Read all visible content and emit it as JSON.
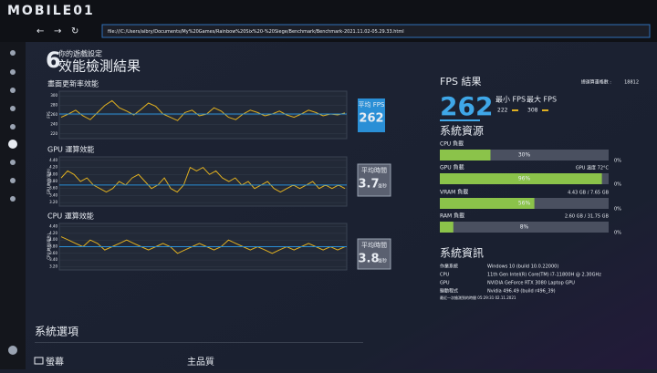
{
  "browser": {
    "logo": "MOBILE01",
    "url": "file:///C:/Users/aibry/Documents/My%20Games/Rainbow%20Six%20-%20Siege/Benchmark/Benchmark-2021.11.02-05.29.33.html"
  },
  "header": {
    "subtitle": "你的遊戲設定",
    "title": "效能檢測結果"
  },
  "charts": [
    {
      "title": "畫面更新率效能",
      "y_label": "FPS",
      "avg_label": "平均 FPS",
      "avg_value": 262,
      "ylim": [
        210,
        310
      ],
      "yticks": [
        220,
        240,
        260,
        280,
        300
      ],
      "values": [
        255,
        262,
        270,
        258,
        250,
        265,
        280,
        290,
        275,
        268,
        260,
        272,
        285,
        278,
        262,
        255,
        248,
        265,
        270,
        258,
        262,
        275,
        268,
        255,
        250,
        262,
        270,
        265,
        258,
        262,
        268,
        260,
        255,
        262,
        270,
        265,
        258,
        262,
        260,
        264
      ]
    },
    {
      "title": "GPU 運算效能",
      "y_label": "GPU 時間(毫秒)",
      "avg_label": "平均時間",
      "avg_value": 3.7,
      "avg_unit": "毫秒",
      "ylim": [
        3.1,
        4.5
      ],
      "yticks": [
        {
          "value": 3.2,
          "label": "3.20"
        },
        {
          "value": 3.4,
          "label": "3.40"
        },
        {
          "value": 3.6,
          "label": "3.60"
        },
        {
          "value": 3.8,
          "label": "3.80"
        },
        {
          "value": 4,
          "label": "4.00"
        },
        {
          "value": 4.2,
          "label": "4.20"
        },
        {
          "value": 4.4,
          "label": "4.40"
        }
      ],
      "values": [
        3.9,
        4.1,
        4.0,
        3.8,
        3.9,
        3.7,
        3.6,
        3.5,
        3.6,
        3.8,
        3.7,
        3.9,
        4.0,
        3.8,
        3.6,
        3.7,
        3.9,
        3.6,
        3.5,
        3.7,
        4.2,
        4.1,
        4.2,
        4.0,
        4.1,
        3.9,
        3.8,
        3.9,
        3.7,
        3.8,
        3.6,
        3.7,
        3.8,
        3.6,
        3.5,
        3.6,
        3.7,
        3.6,
        3.7,
        3.8,
        3.6,
        3.7,
        3.6,
        3.7,
        3.6
      ]
    },
    {
      "title": "CPU 運算效能",
      "y_label": "CPU 時間(毫秒)",
      "avg_label": "平均時間",
      "avg_value": 3.8,
      "avg_unit": "毫秒",
      "ylim": [
        3.1,
        4.5
      ],
      "yticks": [
        {
          "value": 3.2,
          "label": "3.20"
        },
        {
          "value": 3.4,
          "label": "3.40"
        },
        {
          "value": 3.6,
          "label": "3.60"
        },
        {
          "value": 3.8,
          "label": "3.80"
        },
        {
          "value": 4,
          "label": "4.00"
        },
        {
          "value": 4.2,
          "label": "4.20"
        },
        {
          "value": 4.4,
          "label": "4.40"
        }
      ],
      "values": [
        4.1,
        4.0,
        3.9,
        3.8,
        4.0,
        3.9,
        3.7,
        3.8,
        3.9,
        4.0,
        3.9,
        3.8,
        3.7,
        3.8,
        3.9,
        3.8,
        3.6,
        3.7,
        3.8,
        3.9,
        3.8,
        3.7,
        3.8,
        4.0,
        3.9,
        3.8,
        3.7,
        3.8,
        3.7,
        3.6,
        3.7,
        3.8,
        3.7,
        3.8,
        3.9,
        3.8,
        3.7,
        3.8,
        3.7,
        3.8
      ]
    }
  ],
  "fps": {
    "title": "FPS 結果",
    "total_label": "總運算畫格數 :",
    "total": 18812,
    "avg": 262,
    "min_label": "最小 FPS",
    "min": 222,
    "max_label": "最大 FPS",
    "max": 308
  },
  "resources": {
    "title": "系統資源",
    "items": [
      {
        "label": "CPU 負載",
        "value": 30,
        "value_label": "30%",
        "min": "0%"
      },
      {
        "label": "GPU 負載",
        "value": 96,
        "value_label": "96%",
        "min": "0%",
        "note": "GPU 溫度 72°C"
      },
      {
        "label": "VRAM 負載",
        "value": 56,
        "value_label": "56%",
        "min": "0%",
        "note": "4.43 GB / 7.65 GB"
      },
      {
        "label": "RAM 負載",
        "value": 8,
        "value_label": "8%",
        "min": "0%",
        "note": "2.60 GB / 31.75 GB"
      }
    ]
  },
  "system_info": {
    "title": "系統資訊",
    "rows": [
      [
        "作業系統",
        "Windows 10 (build 10.0.22000)"
      ],
      [
        "CPU",
        "11th Gen Intel(R) Core(TM) i7-11800H @ 2.30GHz"
      ],
      [
        "GPU",
        "NVIDIA GeForce RTX 3080 Laptop GPU"
      ],
      [
        "驅動程式",
        "Nvidia 496.49 (build r496_39)"
      ]
    ],
    "footer": "最近一次檢測到的時間 05:29:31 02.11.2021"
  },
  "options": {
    "title": "系統選項",
    "tabs": [
      "螢幕",
      "主品質"
    ]
  }
}
